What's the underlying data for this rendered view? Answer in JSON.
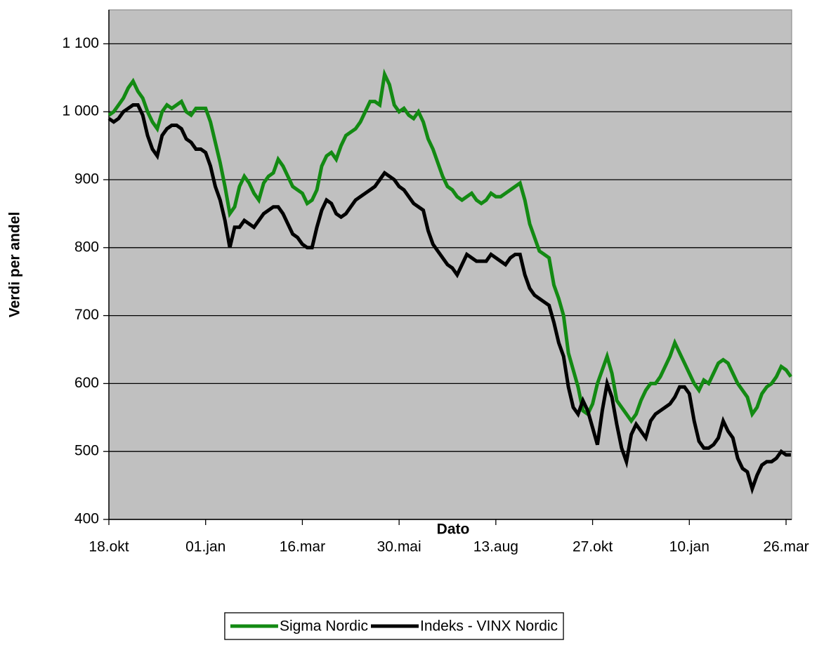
{
  "chart_data": {
    "type": "line",
    "x_label": "Dato",
    "y_label": "Verdi per andel",
    "categories": [
      "18.okt",
      null,
      null,
      null,
      null,
      null,
      null,
      null,
      null,
      null,
      null,
      null,
      null,
      null,
      null,
      null,
      null,
      null,
      null,
      null,
      "01.jan",
      null,
      null,
      null,
      null,
      null,
      null,
      null,
      null,
      null,
      null,
      null,
      null,
      null,
      null,
      null,
      null,
      null,
      null,
      null,
      "16.mar",
      null,
      null,
      null,
      null,
      null,
      null,
      null,
      null,
      null,
      null,
      null,
      null,
      null,
      null,
      null,
      null,
      null,
      null,
      null,
      "30.mai",
      null,
      null,
      null,
      null,
      null,
      null,
      null,
      null,
      null,
      null,
      null,
      null,
      null,
      null,
      null,
      null,
      null,
      null,
      null,
      "13.aug",
      null,
      null,
      null,
      null,
      null,
      null,
      null,
      null,
      null,
      null,
      null,
      null,
      null,
      null,
      null,
      null,
      null,
      null,
      null,
      "27.okt",
      null,
      null,
      null,
      null,
      null,
      null,
      null,
      null,
      null,
      null,
      null,
      null,
      null,
      null,
      null,
      null,
      null,
      null,
      null,
      "10.jan",
      null,
      null,
      null,
      null,
      null,
      null,
      null,
      null,
      null,
      null,
      null,
      null,
      null,
      null,
      null,
      null,
      null,
      null,
      null,
      "26.mar",
      null
    ],
    "series": [
      {
        "name": "Sigma Nordic",
        "color": "#138a13",
        "values": [
          995,
          1000,
          1010,
          1020,
          1035,
          1045,
          1030,
          1020,
          1000,
          985,
          975,
          1000,
          1010,
          1005,
          1010,
          1015,
          1000,
          995,
          1005,
          1005,
          1005,
          985,
          955,
          925,
          890,
          850,
          860,
          890,
          905,
          895,
          880,
          870,
          895,
          905,
          910,
          930,
          920,
          905,
          890,
          885,
          880,
          865,
          870,
          885,
          920,
          935,
          940,
          930,
          950,
          965,
          970,
          975,
          985,
          1000,
          1015,
          1015,
          1010,
          1055,
          1040,
          1010,
          1000,
          1005,
          995,
          990,
          1000,
          985,
          960,
          945,
          925,
          905,
          890,
          885,
          875,
          870,
          875,
          880,
          870,
          865,
          870,
          880,
          875,
          875,
          880,
          885,
          890,
          895,
          870,
          835,
          815,
          795,
          790,
          785,
          745,
          725,
          700,
          645,
          620,
          595,
          560,
          555,
          570,
          600,
          620,
          640,
          615,
          575,
          565,
          555,
          545,
          555,
          575,
          590,
          600,
          600,
          610,
          625,
          640,
          660,
          645,
          630,
          615,
          600,
          590,
          605,
          600,
          615,
          630,
          635,
          630,
          615,
          600,
          590,
          580,
          555,
          565,
          585,
          595,
          600,
          610,
          625,
          620,
          610
        ]
      },
      {
        "name": "Indeks - VINX Nordic",
        "color": "#000000",
        "values": [
          990,
          985,
          990,
          1000,
          1005,
          1010,
          1010,
          995,
          965,
          945,
          935,
          965,
          975,
          980,
          980,
          975,
          960,
          955,
          945,
          945,
          940,
          920,
          890,
          870,
          840,
          800,
          830,
          830,
          840,
          835,
          830,
          840,
          850,
          855,
          860,
          860,
          850,
          835,
          820,
          815,
          805,
          800,
          800,
          830,
          855,
          870,
          865,
          850,
          845,
          850,
          860,
          870,
          875,
          880,
          885,
          890,
          900,
          910,
          905,
          900,
          890,
          885,
          875,
          865,
          860,
          855,
          825,
          805,
          795,
          785,
          775,
          770,
          760,
          775,
          790,
          785,
          780,
          780,
          780,
          790,
          785,
          780,
          775,
          785,
          790,
          790,
          760,
          740,
          730,
          725,
          720,
          715,
          690,
          660,
          640,
          595,
          565,
          555,
          575,
          560,
          535,
          510,
          560,
          600,
          580,
          540,
          505,
          485,
          525,
          540,
          530,
          520,
          545,
          555,
          560,
          565,
          570,
          580,
          595,
          595,
          585,
          545,
          515,
          505,
          505,
          510,
          520,
          545,
          530,
          520,
          490,
          475,
          470,
          445,
          465,
          480,
          485,
          485,
          490,
          500,
          495,
          495
        ]
      }
    ],
    "ylim": [
      400,
      1150
    ],
    "yticks": [
      400,
      500,
      600,
      700,
      800,
      900,
      {
        "value": 1000,
        "label": "1 000"
      },
      {
        "value": 1100,
        "label": "1 100"
      }
    ],
    "grid": true,
    "legend": "bottom",
    "background": "#c0c0c0"
  }
}
